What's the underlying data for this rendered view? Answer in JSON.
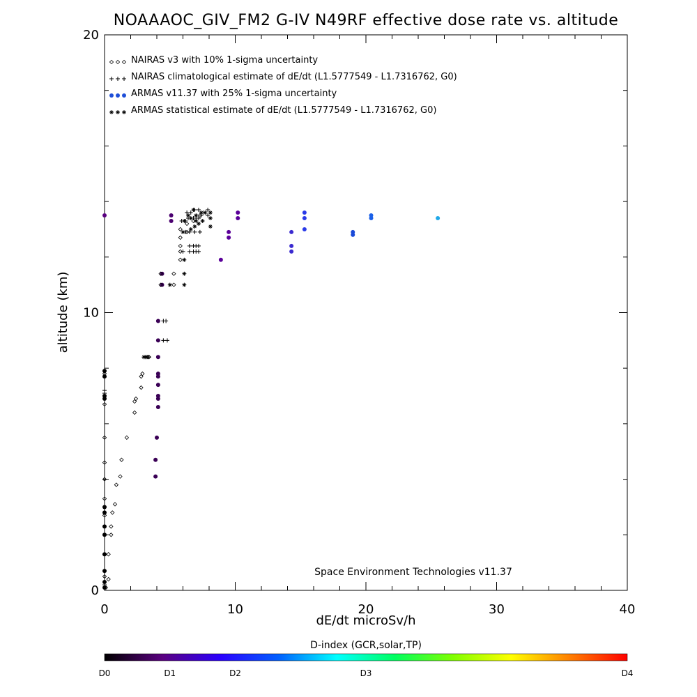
{
  "chart_data": {
    "type": "scatter",
    "title": "NOAAAOC_GIV_FM2 G-IV   N49RF  effective dose rate vs. altitude",
    "xlabel": "dE/dt microSv/h",
    "ylabel": "altitude (km)",
    "xlim": [
      0,
      40
    ],
    "ylim": [
      0,
      20
    ],
    "x_ticks": [
      "0",
      "10",
      "20",
      "30",
      "40"
    ],
    "y_ticks": [
      "0",
      "10",
      "20"
    ],
    "legend_placement": "top-left",
    "annotation": "Space Environment Technologies v11.37",
    "legend": [
      {
        "marker": "◇◇◇",
        "label": "NAIRAS v3 with 10% 1-sigma uncertainty",
        "color": "#000000"
      },
      {
        "marker": "+++",
        "label": "NAIRAS climatological estimate of dE/dt (L1.5777549 - L1.7316762, G0)",
        "color": "#000000"
      },
      {
        "marker": "●●●",
        "label": "ARMAS v11.37 with 25% 1-sigma uncertainty",
        "color": "#1f4fd8"
      },
      {
        "marker": "***",
        "label": "ARMAS statistical estimate of dE/dt (L1.5777549 - L1.7316762, G0)",
        "color": "#000000"
      }
    ],
    "colorbar": {
      "title": "D-index (GCR,solar,TP)",
      "labels": [
        {
          "text": "D0",
          "value": 0
        },
        {
          "text": "D1",
          "value": 1
        },
        {
          "text": "D2",
          "value": 2
        },
        {
          "text": "D3",
          "value": 4
        },
        {
          "text": "D4",
          "value": 8
        }
      ],
      "range": [
        0,
        8
      ],
      "stops": [
        "#000000",
        "#5a0080",
        "#2a00ff",
        "#0060ff",
        "#00ffff",
        "#00ff60",
        "#80ff00",
        "#ffff00",
        "#ff8000",
        "#ff0000"
      ]
    },
    "series": [
      {
        "kind": "armas",
        "points": [
          [
            0.0,
            13.5,
            "#5a0080"
          ],
          [
            0.0,
            7.9,
            "#000000"
          ],
          [
            0.0,
            7.7,
            "#000000"
          ],
          [
            0.0,
            7.0,
            "#000000"
          ],
          [
            0.0,
            6.9,
            "#000000"
          ],
          [
            0.0,
            3.0,
            "#000000"
          ],
          [
            0.0,
            2.8,
            "#000000"
          ],
          [
            0.0,
            2.3,
            "#000000"
          ],
          [
            0.0,
            2.0,
            "#000000"
          ],
          [
            0.0,
            1.3,
            "#000000"
          ],
          [
            0.0,
            0.7,
            "#000000"
          ],
          [
            0.0,
            0.3,
            "#000000"
          ],
          [
            0.0,
            0.1,
            "#000000"
          ],
          [
            3.9,
            4.1,
            "#3a0055"
          ],
          [
            3.9,
            4.7,
            "#3a0055"
          ],
          [
            4.0,
            5.5,
            "#3a0055"
          ],
          [
            4.1,
            6.6,
            "#3a0055"
          ],
          [
            4.1,
            6.9,
            "#3a0055"
          ],
          [
            4.1,
            7.0,
            "#3a0055"
          ],
          [
            4.1,
            7.4,
            "#3a0055"
          ],
          [
            4.1,
            7.7,
            "#3a0055"
          ],
          [
            4.1,
            7.8,
            "#3a0055"
          ],
          [
            4.1,
            8.4,
            "#3a0055"
          ],
          [
            4.1,
            9.0,
            "#3a0055"
          ],
          [
            4.1,
            9.7,
            "#3a0055"
          ],
          [
            4.4,
            11.0,
            "#3a0055"
          ],
          [
            4.4,
            11.4,
            "#3a0055"
          ],
          [
            5.1,
            13.3,
            "#4b0070"
          ],
          [
            5.1,
            13.5,
            "#4b0070"
          ],
          [
            8.9,
            11.9,
            "#5a0099"
          ],
          [
            9.5,
            12.7,
            "#5a0099"
          ],
          [
            9.5,
            12.9,
            "#5a0099"
          ],
          [
            10.2,
            13.4,
            "#5a0099"
          ],
          [
            10.2,
            13.6,
            "#5a0099"
          ],
          [
            14.3,
            12.2,
            "#3a2ad0"
          ],
          [
            14.3,
            12.4,
            "#3a2ad0"
          ],
          [
            14.3,
            12.9,
            "#3a2ad0"
          ],
          [
            15.3,
            13.0,
            "#2a3ae8"
          ],
          [
            15.3,
            13.4,
            "#2a3ae8"
          ],
          [
            15.3,
            13.6,
            "#2a3ae8"
          ],
          [
            19.0,
            12.8,
            "#1a4ad8"
          ],
          [
            19.0,
            12.9,
            "#1a4ad8"
          ],
          [
            20.4,
            13.4,
            "#1a60e8"
          ],
          [
            20.4,
            13.5,
            "#1a60e8"
          ],
          [
            25.5,
            13.4,
            "#20a8e8"
          ]
        ]
      },
      {
        "kind": "nairas",
        "points": [
          [
            0.0,
            7.8
          ],
          [
            0.0,
            6.7
          ],
          [
            0.0,
            5.5
          ],
          [
            0.0,
            4.6
          ],
          [
            0.0,
            4.0
          ],
          [
            0.0,
            3.3
          ],
          [
            0.0,
            2.7
          ],
          [
            0.0,
            2.0
          ],
          [
            0.0,
            1.3
          ],
          [
            0.0,
            0.5
          ],
          [
            0.1,
            0.1
          ],
          [
            0.3,
            0.4
          ],
          [
            0.3,
            1.3
          ],
          [
            0.5,
            2.0
          ],
          [
            0.5,
            2.3
          ],
          [
            0.6,
            2.8
          ],
          [
            0.8,
            3.1
          ],
          [
            0.9,
            3.8
          ],
          [
            1.2,
            4.1
          ],
          [
            1.3,
            4.7
          ],
          [
            1.7,
            5.5
          ],
          [
            2.3,
            6.4
          ],
          [
            2.3,
            6.8
          ],
          [
            2.4,
            6.9
          ],
          [
            2.8,
            7.3
          ],
          [
            2.8,
            7.7
          ],
          [
            2.9,
            7.8
          ],
          [
            3.3,
            8.4
          ],
          [
            3.4,
            8.4
          ],
          [
            4.3,
            11.0
          ],
          [
            4.3,
            11.4
          ],
          [
            5.3,
            11.0
          ],
          [
            5.3,
            11.4
          ],
          [
            5.8,
            11.9
          ],
          [
            5.8,
            12.2
          ],
          [
            5.8,
            12.4
          ],
          [
            5.8,
            12.7
          ],
          [
            5.8,
            13.0
          ],
          [
            6.3,
            12.9
          ],
          [
            6.3,
            13.2
          ],
          [
            6.8,
            13.3
          ],
          [
            7.3,
            13.5
          ]
        ]
      },
      {
        "kind": "nairas_clim",
        "points": [
          [
            0.0,
            0.2
          ],
          [
            0.0,
            4.0
          ],
          [
            0.0,
            7.1
          ],
          [
            0.0,
            7.2
          ],
          [
            3.1,
            8.4
          ],
          [
            3.4,
            8.4
          ],
          [
            4.5,
            9.7
          ],
          [
            4.7,
            9.7
          ],
          [
            4.5,
            9.0
          ],
          [
            4.8,
            9.0
          ],
          [
            6.0,
            12.2
          ],
          [
            6.5,
            12.2
          ],
          [
            6.8,
            12.2
          ],
          [
            7.0,
            12.2
          ],
          [
            7.2,
            12.2
          ],
          [
            6.5,
            12.4
          ],
          [
            6.8,
            12.4
          ],
          [
            7.0,
            12.4
          ],
          [
            7.2,
            12.4
          ],
          [
            6.2,
            12.9
          ],
          [
            6.5,
            12.9
          ],
          [
            6.9,
            12.9
          ],
          [
            7.3,
            12.9
          ],
          [
            5.9,
            13.3
          ],
          [
            6.2,
            13.3
          ],
          [
            6.4,
            13.4
          ],
          [
            6.8,
            13.4
          ],
          [
            7.0,
            13.4
          ],
          [
            7.2,
            13.4
          ],
          [
            7.4,
            13.5
          ],
          [
            6.3,
            13.6
          ],
          [
            6.6,
            13.6
          ],
          [
            6.9,
            13.7
          ],
          [
            7.2,
            13.7
          ],
          [
            7.6,
            13.6
          ],
          [
            7.9,
            13.5
          ],
          [
            7.9,
            13.7
          ]
        ]
      },
      {
        "kind": "armas_stat",
        "points": [
          [
            3.0,
            8.4
          ],
          [
            3.2,
            8.4
          ],
          [
            5.0,
            11.0
          ],
          [
            6.1,
            11.0
          ],
          [
            6.1,
            11.4
          ],
          [
            6.1,
            11.9
          ],
          [
            6.0,
            12.9
          ],
          [
            6.6,
            13.0
          ],
          [
            6.9,
            13.1
          ],
          [
            7.2,
            13.2
          ],
          [
            8.1,
            13.1
          ],
          [
            6.1,
            13.3
          ],
          [
            6.6,
            13.4
          ],
          [
            7.0,
            13.5
          ],
          [
            7.4,
            13.6
          ],
          [
            7.7,
            13.6
          ],
          [
            8.1,
            13.6
          ],
          [
            8.1,
            13.4
          ],
          [
            7.0,
            13.3
          ],
          [
            6.4,
            13.5
          ],
          [
            6.8,
            13.7
          ],
          [
            7.5,
            13.3
          ]
        ]
      }
    ]
  }
}
